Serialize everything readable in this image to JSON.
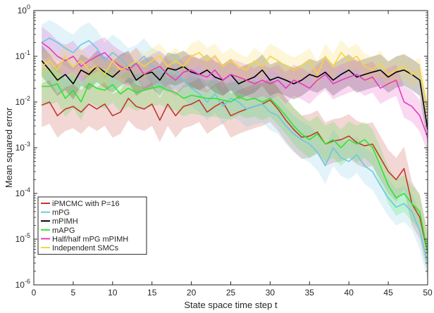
{
  "chart_data": {
    "type": "line",
    "title": "",
    "xlabel": "State space time step t",
    "ylabel": "Mean squared error",
    "y_scale": "log",
    "xlim": [
      0,
      50
    ],
    "ylim": [
      1e-06,
      1
    ],
    "x_ticks": [
      0,
      5,
      10,
      15,
      20,
      25,
      30,
      35,
      40,
      45,
      50
    ],
    "x_tick_labels": [
      "0",
      "5",
      "10",
      "15",
      "20",
      "25",
      "30",
      "35",
      "40",
      "45",
      "50"
    ],
    "y_ticks": [
      1e-06,
      1e-05,
      0.0001,
      0.001,
      0.01,
      0.1,
      1
    ],
    "y_tick_labels": [
      {
        "base": "10",
        "exp": "-6"
      },
      {
        "base": "10",
        "exp": "-5"
      },
      {
        "base": "10",
        "exp": "-4"
      },
      {
        "base": "10",
        "exp": "-3"
      },
      {
        "base": "10",
        "exp": "-2"
      },
      {
        "base": "10",
        "exp": "-1"
      },
      {
        "base": "10",
        "exp": "0"
      }
    ],
    "grid": false,
    "legend_position": "bottom-left",
    "x": [
      1,
      2,
      3,
      4,
      5,
      6,
      7,
      8,
      9,
      10,
      11,
      12,
      13,
      14,
      15,
      16,
      17,
      18,
      19,
      20,
      21,
      22,
      23,
      24,
      25,
      26,
      27,
      28,
      29,
      30,
      31,
      32,
      33,
      34,
      35,
      36,
      37,
      38,
      39,
      40,
      41,
      42,
      43,
      44,
      45,
      46,
      47,
      48,
      49,
      50
    ],
    "series": [
      {
        "name": "iPMCMC with P=16",
        "color": "#c0392b",
        "band_factor": 3,
        "values": [
          0.0085,
          0.01,
          0.005,
          0.007,
          0.008,
          0.006,
          0.009,
          0.007,
          0.009,
          0.005,
          0.006,
          0.012,
          0.008,
          0.007,
          0.009,
          0.004,
          0.009,
          0.005,
          0.008,
          0.009,
          0.011,
          0.006,
          0.008,
          0.01,
          0.005,
          0.006,
          0.007,
          0.008,
          0.009,
          0.011,
          0.007,
          0.004,
          0.0025,
          0.0017,
          0.0018,
          0.0022,
          0.0012,
          0.0014,
          0.0015,
          0.0018,
          0.0013,
          0.0011,
          0.0012,
          0.0006,
          0.0003,
          0.0002,
          0.00035,
          6e-05,
          3e-05,
          5e-06
        ]
      },
      {
        "name": "mPG",
        "color": "#6ec6e6",
        "band_factor": 2.5,
        "values": [
          0.2,
          0.25,
          0.2,
          0.15,
          0.12,
          0.18,
          0.22,
          0.15,
          0.08,
          0.12,
          0.09,
          0.06,
          0.07,
          0.1,
          0.06,
          0.05,
          0.04,
          0.05,
          0.03,
          0.02,
          0.015,
          0.01,
          0.015,
          0.008,
          0.012,
          0.01,
          0.007,
          0.008,
          0.009,
          0.006,
          0.005,
          0.003,
          0.002,
          0.0015,
          0.0012,
          0.0008,
          0.0004,
          0.001,
          0.0006,
          0.0005,
          0.0007,
          0.0004,
          0.0003,
          0.00015,
          8e-05,
          5e-05,
          6e-05,
          4e-05,
          1.5e-05,
          3e-06
        ]
      },
      {
        "name": "mPIMH",
        "color": "#000000",
        "band_factor": 2.2,
        "values": [
          0.08,
          0.05,
          0.03,
          0.04,
          0.025,
          0.05,
          0.04,
          0.06,
          0.045,
          0.035,
          0.05,
          0.06,
          0.03,
          0.04,
          0.045,
          0.03,
          0.055,
          0.05,
          0.06,
          0.045,
          0.04,
          0.05,
          0.035,
          0.03,
          0.04,
          0.025,
          0.03,
          0.035,
          0.05,
          0.03,
          0.035,
          0.03,
          0.025,
          0.03,
          0.04,
          0.035,
          0.045,
          0.03,
          0.04,
          0.05,
          0.035,
          0.04,
          0.045,
          0.05,
          0.035,
          0.045,
          0.05,
          0.04,
          0.03,
          0.0025
        ]
      },
      {
        "name": "mAPG",
        "color": "#2ee62e",
        "band_factor": 2.5,
        "values": [
          0.022,
          0.022,
          0.025,
          0.012,
          0.018,
          0.01,
          0.025,
          0.02,
          0.018,
          0.024,
          0.015,
          0.02,
          0.016,
          0.018,
          0.02,
          0.022,
          0.018,
          0.016,
          0.012,
          0.014,
          0.013,
          0.012,
          0.012,
          0.011,
          0.01,
          0.013,
          0.011,
          0.012,
          0.01,
          0.012,
          0.008,
          0.005,
          0.003,
          0.002,
          0.0015,
          0.002,
          0.0012,
          0.0015,
          0.001,
          0.0015,
          0.0012,
          0.0015,
          0.001,
          0.0004,
          0.00015,
          8e-05,
          0.0001,
          6e-05,
          4e-05,
          5e-06
        ]
      },
      {
        "name": "Half/half mPG mPIMH",
        "color": "#e63bbf",
        "band_factor": 2.2,
        "values": [
          0.2,
          0.15,
          0.1,
          0.08,
          0.1,
          0.06,
          0.08,
          0.1,
          0.12,
          0.08,
          0.06,
          0.05,
          0.07,
          0.04,
          0.05,
          0.06,
          0.04,
          0.03,
          0.045,
          0.05,
          0.04,
          0.035,
          0.05,
          0.03,
          0.04,
          0.035,
          0.03,
          0.025,
          0.03,
          0.025,
          0.03,
          0.02,
          0.03,
          0.025,
          0.02,
          0.03,
          0.04,
          0.025,
          0.03,
          0.035,
          0.04,
          0.03,
          0.035,
          0.02,
          0.025,
          0.03,
          0.01,
          0.008,
          0.005,
          0.0017
        ]
      },
      {
        "name": "Independent SMCs",
        "color": "#f5d442",
        "band_factor": 1.9,
        "values": [
          0.06,
          0.08,
          0.05,
          0.1,
          0.06,
          0.08,
          0.05,
          0.06,
          0.04,
          0.08,
          0.05,
          0.06,
          0.08,
          0.06,
          0.08,
          0.1,
          0.06,
          0.08,
          0.06,
          0.1,
          0.12,
          0.08,
          0.1,
          0.06,
          0.08,
          0.06,
          0.05,
          0.08,
          0.06,
          0.1,
          0.08,
          0.06,
          0.05,
          0.06,
          0.08,
          0.04,
          0.1,
          0.06,
          0.12,
          0.08,
          0.1,
          0.06,
          0.05,
          0.07,
          0.04,
          0.05,
          0.06,
          0.04,
          0.05,
          0.007
        ]
      }
    ]
  }
}
